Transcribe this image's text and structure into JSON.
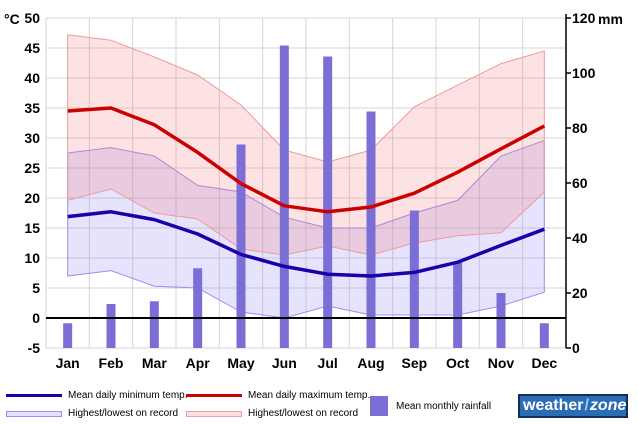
{
  "chart_data": {
    "type": "line",
    "months": [
      "Jan",
      "Feb",
      "Mar",
      "Apr",
      "May",
      "Jun",
      "Jul",
      "Aug",
      "Sep",
      "Oct",
      "Nov",
      "Dec"
    ],
    "left_axis": {
      "unit": "°C",
      "ticks": [
        50,
        45,
        40,
        35,
        30,
        25,
        20,
        15,
        10,
        5,
        0,
        -5
      ],
      "ylim": [
        -5,
        50
      ]
    },
    "right_axis": {
      "unit": "mm",
      "ticks": [
        120,
        100,
        80,
        60,
        40,
        20,
        0
      ],
      "ylim": [
        0,
        120
      ]
    },
    "series": [
      {
        "name": "Mean daily minimum temp.",
        "kind": "line",
        "color": "#1a00a6",
        "values": [
          16.9,
          17.7,
          16.4,
          14.0,
          10.6,
          8.6,
          7.3,
          7.0,
          7.6,
          9.3,
          12.1,
          14.8
        ]
      },
      {
        "name": "Mean daily maximum temp.",
        "kind": "line",
        "color": "#cc0000",
        "values": [
          34.5,
          35.0,
          32.2,
          27.6,
          22.4,
          18.7,
          17.7,
          18.5,
          20.8,
          24.3,
          28.2,
          32.0
        ]
      },
      {
        "name": "Highest/lowest on record",
        "kind": "band",
        "for": "min",
        "color": "#7b68ee",
        "upper": [
          27.5,
          28.4,
          27.0,
          22.1,
          21.0,
          16.8,
          15.0,
          15.0,
          17.5,
          19.6,
          27.0,
          29.6
        ],
        "lower": [
          7.0,
          7.9,
          5.3,
          5.0,
          1.0,
          0.0,
          2.0,
          0.5,
          0.5,
          0.5,
          2.0,
          4.3
        ]
      },
      {
        "name": "Highest/lowest on record",
        "kind": "band",
        "for": "max",
        "color": "#f08080",
        "upper": [
          47.2,
          46.3,
          43.5,
          40.5,
          35.5,
          28.0,
          26.0,
          28.0,
          35.2,
          38.8,
          42.4,
          44.5
        ],
        "lower": [
          19.6,
          21.5,
          17.5,
          16.5,
          11.5,
          10.5,
          12.0,
          10.5,
          12.5,
          13.7,
          14.2,
          21.0
        ]
      },
      {
        "name": "Mean monthly rainfall",
        "kind": "bar",
        "axis": "right",
        "color": "#7b6fd6",
        "values": [
          9,
          16,
          17,
          29,
          74,
          110,
          106,
          86,
          50,
          31,
          20,
          9
        ]
      }
    ],
    "grid": true,
    "legend": "bottom"
  },
  "legend": {
    "min_line": "Mean daily minimum temp.",
    "max_line": "Mean daily maximum temp.",
    "min_band": "Highest/lowest on record",
    "max_band": "Highest/lowest on record",
    "rain": "Mean monthly rainfall"
  },
  "logo": {
    "part1": "weather",
    "part2": "zone"
  }
}
